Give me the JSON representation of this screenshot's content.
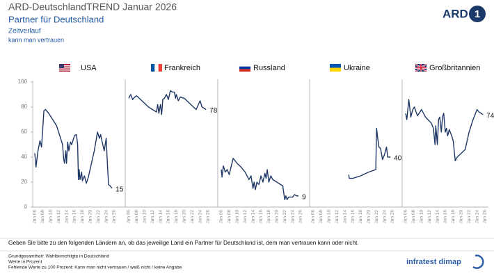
{
  "header": {
    "title": "ARD-DeutschlandTREND Januar 2026",
    "subtitle": "Partner für Deutschland",
    "line1": "Zeitverlauf",
    "line2": "kann man vertrauen"
  },
  "logo": {
    "text": "ARD",
    "mark": "1"
  },
  "chart_data": [
    {
      "type": "line",
      "title": "USA",
      "color": "#1f3766",
      "ylim": [
        0,
        100
      ],
      "yticks": [
        0,
        20,
        40,
        60,
        80,
        100
      ],
      "xlim": [
        2006,
        2026
      ],
      "xticks": [
        {
          "value": 2006,
          "label": "Jan 06"
        },
        {
          "value": 2008,
          "label": "Jan 08"
        },
        {
          "value": 2010,
          "label": "Jan 10"
        },
        {
          "value": 2012,
          "label": "Jan 12"
        },
        {
          "value": 2014,
          "label": "Jan 14"
        },
        {
          "value": 2016,
          "label": "Jan 16"
        },
        {
          "value": 2018,
          "label": "Jan 18"
        },
        {
          "value": 2020,
          "label": "Jan 20"
        },
        {
          "value": 2022,
          "label": "Jan 22"
        },
        {
          "value": 2024,
          "label": "Jan 24"
        },
        {
          "value": 2026,
          "label": "Jan 26"
        }
      ],
      "x": [
        2006,
        2006.3,
        2006.8,
        2007.3,
        2007.7,
        2008.3,
        2008.7,
        2009.5,
        2010.5,
        2011.5,
        2012.5,
        2013,
        2013.3,
        2013.5,
        2013.8,
        2014,
        2014.3,
        2014.6,
        2015,
        2015.3,
        2016,
        2016.5,
        2016.8,
        2017,
        2017.2,
        2017.4,
        2017.8,
        2018,
        2018.5,
        2019,
        2019.5,
        2021,
        2021.8,
        2022.3,
        2022.6,
        2023,
        2023.5,
        2024,
        2024.3,
        2024.6,
        2025,
        2025.5
      ],
      "values": [
        43,
        32,
        45,
        53,
        48,
        77,
        78,
        75,
        70,
        65,
        55,
        50,
        38,
        35,
        45,
        35,
        52,
        45,
        52,
        50,
        57,
        58,
        50,
        22,
        30,
        22,
        28,
        21,
        25,
        19,
        24,
        45,
        60,
        55,
        58,
        52,
        45,
        55,
        35,
        18,
        17,
        15
      ]
    },
    {
      "type": "line",
      "title": "Frankreich",
      "color": "#1f3766",
      "ylim": [
        0,
        100
      ],
      "xlim": [
        2006,
        2026
      ],
      "xticks": [
        {
          "value": 2006,
          "label": "Jan 06"
        },
        {
          "value": 2008,
          "label": "Jan 08"
        },
        {
          "value": 2010,
          "label": "Jan 10"
        },
        {
          "value": 2012,
          "label": "Jan 12"
        },
        {
          "value": 2014,
          "label": "Jan 14"
        },
        {
          "value": 2016,
          "label": "Jan 16"
        },
        {
          "value": 2018,
          "label": "Jan 18"
        },
        {
          "value": 2020,
          "label": "Jan 20"
        },
        {
          "value": 2022,
          "label": "Jan 22"
        },
        {
          "value": 2024,
          "label": "Jan 24"
        },
        {
          "value": 2026,
          "label": "Jan 26"
        }
      ],
      "x": [
        2006,
        2006.5,
        2007,
        2007.5,
        2008,
        2009,
        2010,
        2011,
        2012,
        2013,
        2013.3,
        2013.6,
        2014,
        2014.3,
        2014.6,
        2015,
        2015.5,
        2016,
        2016.5,
        2017,
        2017.5,
        2017.8,
        2018,
        2018.5,
        2019,
        2020,
        2021,
        2022,
        2023,
        2024,
        2024.5,
        2025.5
      ],
      "values": [
        87,
        90,
        86,
        88,
        89,
        86,
        83,
        80,
        78,
        76,
        82,
        75,
        82,
        74,
        86,
        87,
        90,
        86,
        93,
        92,
        92,
        87,
        90,
        85,
        88,
        87,
        84,
        81,
        78,
        85,
        80,
        78
      ]
    },
    {
      "type": "line",
      "title": "Russland",
      "color": "#1f3766",
      "ylim": [
        0,
        100
      ],
      "xlim": [
        2006,
        2026
      ],
      "xticks": [
        {
          "value": 2006,
          "label": "Jan 06"
        },
        {
          "value": 2008,
          "label": "Jan 08"
        },
        {
          "value": 2010,
          "label": "Jan 10"
        },
        {
          "value": 2012,
          "label": "Jan 12"
        },
        {
          "value": 2014,
          "label": "Jan 14"
        },
        {
          "value": 2016,
          "label": "Jan 16"
        },
        {
          "value": 2018,
          "label": "Jan 18"
        },
        {
          "value": 2020,
          "label": "Jan 20"
        },
        {
          "value": 2022,
          "label": "Jan 22"
        },
        {
          "value": 2024,
          "label": "Jan 24"
        },
        {
          "value": 2026,
          "label": "Jan 26"
        }
      ],
      "x": [
        2006,
        2006.2,
        2006.5,
        2007,
        2007.5,
        2008,
        2009,
        2010,
        2011,
        2012,
        2013,
        2013.5,
        2014,
        2014.3,
        2014.6,
        2015,
        2015.5,
        2016,
        2016.5,
        2017,
        2017.3,
        2017.6,
        2018,
        2018.5,
        2019,
        2020,
        2021,
        2021.5,
        2022,
        2022.3,
        2022.6,
        2023,
        2024,
        2024.5,
        2025,
        2025.5
      ],
      "values": [
        30,
        24,
        33,
        28,
        30,
        26,
        39,
        35,
        32,
        28,
        22,
        25,
        15,
        20,
        14,
        20,
        18,
        25,
        20,
        27,
        23,
        30,
        20,
        25,
        22,
        20,
        18,
        17,
        6,
        9,
        6,
        8,
        8,
        10,
        9,
        9
      ]
    },
    {
      "type": "line",
      "title": "Ukraine",
      "color": "#1f3766",
      "ylim": [
        0,
        100
      ],
      "xlim": [
        2006,
        2026
      ],
      "xticks": [
        {
          "value": 2006,
          "label": "Jan 06"
        },
        {
          "value": 2008,
          "label": "Jan 08"
        },
        {
          "value": 2010,
          "label": "Jan 10"
        },
        {
          "value": 2012,
          "label": "Jan 12"
        },
        {
          "value": 2014,
          "label": "Jan 14"
        },
        {
          "value": 2016,
          "label": "Jan 16"
        },
        {
          "value": 2018,
          "label": "Jan 18"
        },
        {
          "value": 2020,
          "label": "Jan 20"
        },
        {
          "value": 2022,
          "label": "Jan 22"
        },
        {
          "value": 2024,
          "label": "Jan 24"
        },
        {
          "value": 2026,
          "label": "Jan 26"
        }
      ],
      "x": [
        2015,
        2015.1,
        2016,
        2018,
        2020,
        2021.8,
        2022,
        2022.3,
        2022.6,
        2023,
        2023.5,
        2024,
        2024.5,
        2024.8,
        2025.5
      ],
      "values": [
        26,
        23,
        23,
        25,
        28,
        30,
        63,
        55,
        48,
        47,
        38,
        42,
        48,
        40,
        40
      ]
    },
    {
      "type": "line",
      "title": "Großbritannien",
      "color": "#1f3766",
      "ylim": [
        0,
        100
      ],
      "xlim": [
        2006,
        2026
      ],
      "xticks": [
        {
          "value": 2006,
          "label": "Jan 06"
        },
        {
          "value": 2008,
          "label": "Jan 08"
        },
        {
          "value": 2010,
          "label": "Jan 10"
        },
        {
          "value": 2012,
          "label": "Jan 12"
        },
        {
          "value": 2014,
          "label": "Jan 14"
        },
        {
          "value": 2016,
          "label": "Jan 16"
        },
        {
          "value": 2018,
          "label": "Jan 18"
        },
        {
          "value": 2020,
          "label": "Jan 20"
        },
        {
          "value": 2022,
          "label": "Jan 22"
        },
        {
          "value": 2024,
          "label": "Jan 24"
        },
        {
          "value": 2026,
          "label": "Jan 26"
        }
      ],
      "x": [
        2006,
        2006.3,
        2006.8,
        2007.3,
        2007.8,
        2008.2,
        2009,
        2010,
        2011,
        2012.5,
        2013,
        2013.4,
        2013.6,
        2014,
        2014.3,
        2014.6,
        2015,
        2015.3,
        2015.6,
        2016,
        2016.3,
        2016.6,
        2017,
        2017.5,
        2018,
        2018.5,
        2019,
        2021,
        2022,
        2023,
        2024,
        2024.5,
        2025.5
      ],
      "values": [
        75,
        70,
        86,
        72,
        78,
        80,
        73,
        78,
        72,
        67,
        63,
        50,
        65,
        50,
        70,
        72,
        60,
        72,
        75,
        60,
        63,
        57,
        62,
        58,
        53,
        37,
        40,
        46,
        60,
        70,
        78,
        76,
        74
      ]
    }
  ],
  "question": "Geben Sie bitte zu den folgenden Ländern an, ob das jeweilige Land ein Partner für Deutschland ist, dem man vertrauen kann oder nicht.",
  "footnotes": [
    "Grundgesamtheit: Wahlberechtigte in Deutschland",
    "Werte in Prozent",
    "Fehlende Werte zu 100 Prozent: Kann man nicht vertrauen / weiß nicht / keine Angabe"
  ],
  "brand": "infratest dimap"
}
